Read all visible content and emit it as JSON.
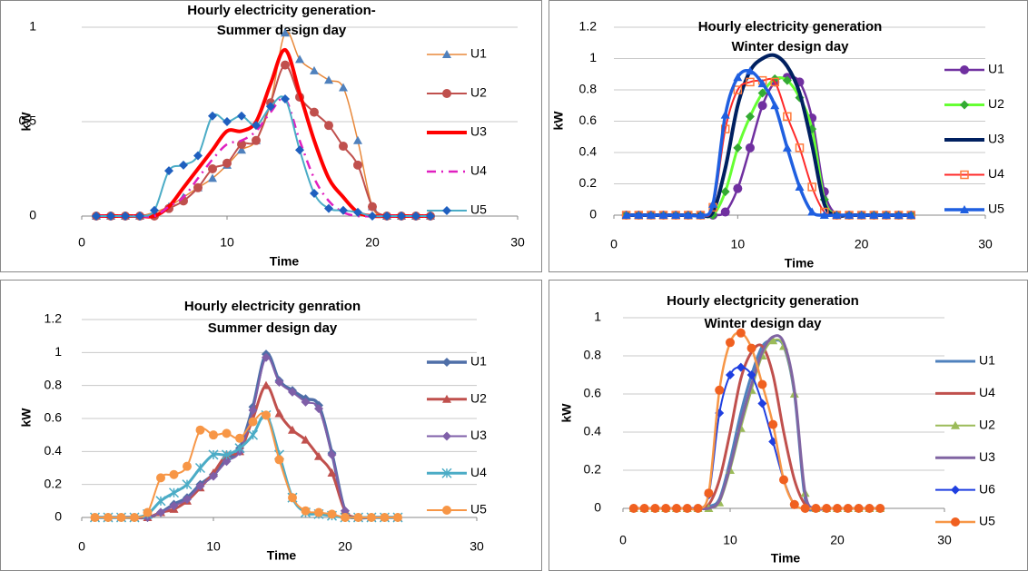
{
  "chart_data": [
    {
      "type": "line",
      "title": [
        "Hourly electricity generation-",
        "Summer design day"
      ],
      "y_label": "kW",
      "x_label": "Time",
      "xlim": [
        0,
        30
      ],
      "xticks": [
        0,
        10,
        20,
        30
      ],
      "ylim": [
        0,
        1
      ],
      "yticks": [
        0,
        0.5,
        1
      ],
      "grid": true,
      "x": [
        1,
        2,
        3,
        4,
        5,
        6,
        7,
        8,
        9,
        10,
        11,
        12,
        13,
        14,
        15,
        16,
        17,
        18,
        19,
        20,
        21,
        22,
        23,
        24
      ],
      "series": [
        {
          "name": "U1",
          "color": "#e8883a",
          "marker": "triangle",
          "marker_color": "#4f81bd",
          "width": 1.5,
          "values": [
            0,
            0,
            0,
            0,
            0.02,
            0.05,
            0.1,
            0.15,
            0.2,
            0.27,
            0.35,
            0.4,
            0.6,
            0.97,
            0.83,
            0.77,
            0.72,
            0.68,
            0.4,
            0.05,
            0,
            0,
            0,
            0
          ]
        },
        {
          "name": "U2",
          "color": "#c0504d",
          "marker": "circle",
          "marker_color": "#c0504d",
          "width": 2,
          "values": [
            0,
            0,
            0,
            0,
            0,
            0.04,
            0.08,
            0.15,
            0.25,
            0.28,
            0.38,
            0.4,
            0.6,
            0.8,
            0.63,
            0.55,
            0.48,
            0.37,
            0.27,
            0.05,
            0,
            0,
            0,
            0
          ]
        },
        {
          "name": "U3",
          "color": "#ff0000",
          "marker": "none",
          "width": 4,
          "values": [
            0,
            0,
            0,
            0,
            0,
            0.05,
            0.15,
            0.25,
            0.35,
            0.45,
            0.45,
            0.5,
            0.7,
            0.88,
            0.65,
            0.4,
            0.2,
            0.1,
            0.02,
            0,
            0,
            0,
            0,
            0
          ]
        },
        {
          "name": "U4",
          "color": "#e020c0",
          "marker": "none",
          "width": 2.5,
          "dash": "10 6 2 6",
          "values": [
            0,
            0,
            0,
            0,
            0,
            0.05,
            0.1,
            0.2,
            0.3,
            0.38,
            0.4,
            0.45,
            0.55,
            0.62,
            0.4,
            0.2,
            0.08,
            0.02,
            0,
            0,
            0,
            0,
            0,
            0
          ]
        },
        {
          "name": "U5",
          "color": "#4bacc6",
          "marker": "diamond",
          "marker_color": "#1f5fbf",
          "width": 2,
          "values": [
            0,
            0,
            0,
            0,
            0.03,
            0.24,
            0.27,
            0.32,
            0.53,
            0.5,
            0.53,
            0.48,
            0.58,
            0.62,
            0.35,
            0.12,
            0.04,
            0.03,
            0.02,
            0,
            0,
            0,
            0,
            0
          ]
        }
      ]
    },
    {
      "type": "line",
      "title": [
        "Hourly electricity generation",
        "Winter design day"
      ],
      "y_label": "kW",
      "x_label": "Time",
      "xlim": [
        0,
        30
      ],
      "xticks": [
        0,
        10,
        20,
        30
      ],
      "ylim": [
        0,
        1.2
      ],
      "yticks": [
        0,
        0.2,
        0.4,
        0.6,
        0.8,
        1,
        1.2
      ],
      "grid": true,
      "x": [
        1,
        2,
        3,
        4,
        5,
        6,
        7,
        8,
        9,
        10,
        11,
        12,
        13,
        14,
        15,
        16,
        17,
        18,
        19,
        20,
        21,
        22,
        23,
        24
      ],
      "series": [
        {
          "name": "U1",
          "color": "#7030a0",
          "marker": "circle",
          "marker_color": "#7030a0",
          "width": 2.5,
          "values": [
            0,
            0,
            0,
            0,
            0,
            0,
            0,
            0,
            0.02,
            0.17,
            0.43,
            0.7,
            0.85,
            0.88,
            0.85,
            0.62,
            0.15,
            0,
            0,
            0,
            0,
            0,
            0,
            0
          ]
        },
        {
          "name": "U2",
          "color": "#66ff33",
          "marker": "diamond",
          "marker_color": "#33aa33",
          "width": 3,
          "values": [
            0,
            0,
            0,
            0,
            0,
            0,
            0,
            0,
            0.15,
            0.43,
            0.63,
            0.78,
            0.87,
            0.86,
            0.75,
            0.55,
            0.1,
            0,
            0,
            0,
            0,
            0,
            0,
            0
          ]
        },
        {
          "name": "U3",
          "color": "#002060",
          "marker": "none",
          "width": 4,
          "values": [
            0,
            0,
            0,
            0,
            0,
            0,
            0,
            0.02,
            0.3,
            0.7,
            0.92,
            1,
            1.02,
            0.95,
            0.78,
            0.45,
            0.07,
            0,
            0,
            0,
            0,
            0,
            0,
            0
          ]
        },
        {
          "name": "U4",
          "color": "#ff2a2a",
          "marker": "square",
          "marker_color": "#ff7a3a",
          "width": 2,
          "values": [
            0,
            0,
            0,
            0,
            0,
            0,
            0,
            0.05,
            0.55,
            0.8,
            0.85,
            0.86,
            0.85,
            0.63,
            0.43,
            0.18,
            0.02,
            0,
            0,
            0,
            0,
            0,
            0,
            0
          ]
        },
        {
          "name": "U5",
          "color": "#1f5fe0",
          "marker": "triangle",
          "marker_color": "#1f5fe0",
          "width": 3.5,
          "values": [
            0,
            0,
            0,
            0,
            0,
            0,
            0,
            0.07,
            0.64,
            0.88,
            0.92,
            0.84,
            0.7,
            0.43,
            0.18,
            0.02,
            0,
            0,
            0,
            0,
            0,
            0,
            0,
            0
          ]
        }
      ]
    },
    {
      "type": "line",
      "title": [
        "Hourly electricity genration",
        "Summer design day"
      ],
      "y_label": "kW",
      "x_label": "Time",
      "xlim": [
        0,
        30
      ],
      "xticks": [
        0,
        10,
        20,
        30
      ],
      "ylim": [
        0,
        1.2
      ],
      "yticks": [
        0,
        0.2,
        0.4,
        0.6,
        0.8,
        1,
        1.2
      ],
      "grid": true,
      "x": [
        1,
        2,
        3,
        4,
        5,
        6,
        7,
        8,
        9,
        10,
        11,
        12,
        13,
        14,
        15,
        16,
        17,
        18,
        19,
        20,
        21,
        22,
        23,
        24
      ],
      "series": [
        {
          "name": "U1",
          "color": "#4f6fa8",
          "marker": "diamond",
          "marker_color": "#4f6fa8",
          "width": 3.5,
          "values": [
            0,
            0,
            0,
            0,
            0,
            0.03,
            0.08,
            0.12,
            0.2,
            0.26,
            0.35,
            0.42,
            0.67,
            0.99,
            0.83,
            0.77,
            0.72,
            0.68,
            0.39,
            0.04,
            0,
            0,
            0,
            0
          ]
        },
        {
          "name": "U2",
          "color": "#c0504d",
          "marker": "triangle",
          "marker_color": "#c0504d",
          "width": 3,
          "values": [
            0,
            0,
            0,
            0,
            0,
            0.03,
            0.05,
            0.1,
            0.18,
            0.27,
            0.38,
            0.4,
            0.6,
            0.8,
            0.63,
            0.53,
            0.47,
            0.37,
            0.27,
            0.04,
            0,
            0,
            0,
            0
          ]
        },
        {
          "name": "U3",
          "color": "#7f5fa8",
          "marker": "diamond",
          "marker_color": "#7f5fa8",
          "width": 2,
          "values": [
            0,
            0,
            0,
            0,
            0,
            0.03,
            0.07,
            0.11,
            0.19,
            0.25,
            0.34,
            0.4,
            0.65,
            0.97,
            0.82,
            0.76,
            0.7,
            0.66,
            0.38,
            0.04,
            0,
            0,
            0,
            0
          ]
        },
        {
          "name": "U4",
          "color": "#4bacc6",
          "marker": "x",
          "marker_color": "#4bacc6",
          "width": 3,
          "values": [
            0,
            0,
            0,
            0,
            0.02,
            0.1,
            0.15,
            0.2,
            0.3,
            0.38,
            0.38,
            0.42,
            0.5,
            0.62,
            0.38,
            0.12,
            0.03,
            0.02,
            0.01,
            0,
            0,
            0,
            0,
            0
          ]
        },
        {
          "name": "U5",
          "color": "#f79646",
          "marker": "circle",
          "marker_color": "#f79646",
          "width": 2,
          "values": [
            0,
            0,
            0,
            0,
            0.03,
            0.24,
            0.26,
            0.31,
            0.53,
            0.5,
            0.51,
            0.48,
            0.58,
            0.62,
            0.35,
            0.12,
            0.04,
            0.03,
            0.02,
            0,
            0,
            0,
            0,
            0
          ]
        }
      ]
    },
    {
      "type": "line",
      "title": [
        "Hourly electgricity generation",
        "Winter design day"
      ],
      "y_label": "kW",
      "x_label": "Time",
      "xlim": [
        0,
        30
      ],
      "xticks": [
        0,
        10,
        20,
        30
      ],
      "ylim": [
        0,
        1
      ],
      "yticks": [
        0,
        0.2,
        0.4,
        0.6,
        0.8,
        1
      ],
      "grid": true,
      "x": [
        1,
        2,
        3,
        4,
        5,
        6,
        7,
        8,
        9,
        10,
        11,
        12,
        13,
        14,
        15,
        16,
        17,
        18,
        19,
        20,
        21,
        22,
        23,
        24
      ],
      "series": [
        {
          "name": "U1",
          "color": "#4f81bd",
          "marker": "none",
          "width": 3,
          "values": [
            0,
            0,
            0,
            0,
            0,
            0,
            0,
            0.01,
            0.05,
            0.25,
            0.5,
            0.7,
            0.85,
            0.88,
            0.85,
            0.6,
            0.05,
            0,
            0,
            0,
            0,
            0,
            0,
            0
          ]
        },
        {
          "name": "U4",
          "color": "#c0504d",
          "marker": "none",
          "width": 3,
          "values": [
            0,
            0,
            0,
            0,
            0,
            0,
            0,
            0.02,
            0.15,
            0.4,
            0.68,
            0.82,
            0.85,
            0.7,
            0.4,
            0.15,
            0.02,
            0,
            0,
            0,
            0,
            0,
            0,
            0
          ]
        },
        {
          "name": "U2",
          "color": "#9bbb59",
          "marker": "triangle",
          "marker_color": "#9bbb59",
          "width": 2,
          "values": [
            0,
            0,
            0,
            0,
            0,
            0,
            0,
            0,
            0.03,
            0.2,
            0.42,
            0.62,
            0.8,
            0.88,
            0.85,
            0.6,
            0.08,
            0,
            0,
            0,
            0,
            0,
            0,
            0
          ]
        },
        {
          "name": "U3",
          "color": "#8064a2",
          "marker": "none",
          "width": 3,
          "values": [
            0,
            0,
            0,
            0,
            0,
            0,
            0,
            0,
            0.04,
            0.22,
            0.45,
            0.65,
            0.82,
            0.9,
            0.87,
            0.62,
            0.08,
            0,
            0,
            0,
            0,
            0,
            0,
            0
          ]
        },
        {
          "name": "U6",
          "color": "#1f3fe0",
          "marker": "diamond",
          "marker_color": "#1f3fe0",
          "width": 2,
          "values": [
            0,
            0,
            0,
            0,
            0,
            0,
            0,
            0.07,
            0.5,
            0.7,
            0.74,
            0.7,
            0.55,
            0.35,
            0.15,
            0.02,
            0,
            0,
            0,
            0,
            0,
            0,
            0,
            0
          ]
        },
        {
          "name": "U5",
          "color": "#f79646",
          "marker": "circle",
          "marker_color": "#f06020",
          "width": 2.5,
          "values": [
            0,
            0,
            0,
            0,
            0,
            0,
            0,
            0.08,
            0.62,
            0.87,
            0.92,
            0.84,
            0.65,
            0.44,
            0.15,
            0.02,
            0,
            0,
            0,
            0,
            0,
            0,
            0,
            0
          ]
        }
      ]
    }
  ]
}
